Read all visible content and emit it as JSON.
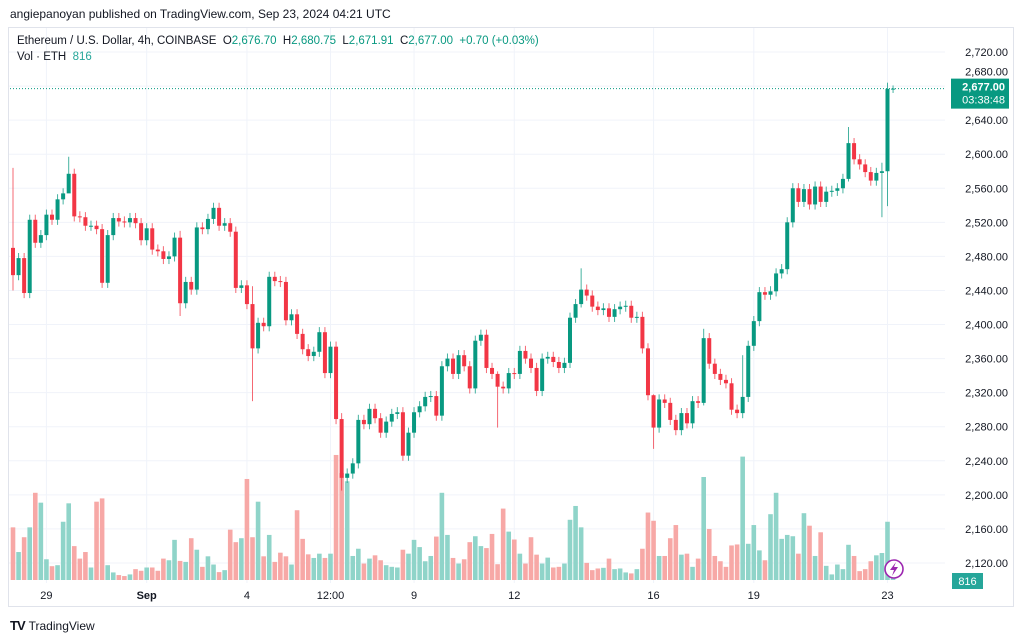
{
  "header": {
    "published": "angiepanoyan published on TradingView.com, Sep 23, 2024 04:21 UTC"
  },
  "legend": {
    "symbol": "Ethereum / U.S. Dollar, 4h, COINBASE",
    "o_label": "O",
    "o": "2,676.70",
    "h_label": "H",
    "h": "2,680.75",
    "l_label": "L",
    "l": "2,671.91",
    "c_label": "C",
    "c": "2,677.00",
    "change": "+0.70 (+0.03%)",
    "vol_label": "Vol · ETH",
    "vol": "816"
  },
  "price_label": {
    "price": "2,677.00",
    "countdown": "03:38:48"
  },
  "volume_label": "816",
  "footer": {
    "logo": "TV",
    "brand": "TradingView"
  },
  "colors": {
    "up": "#089981",
    "down": "#F23645",
    "vol_up": "#8fd4c9",
    "vol_down": "#f7a8a6",
    "accent": "#9c27b0"
  },
  "chart_data": {
    "type": "candlestick",
    "title": "Ethereum / U.S. Dollar, 4h, COINBASE",
    "ylim": [
      2090,
      2735
    ],
    "yticks": [
      2120,
      2160,
      2200,
      2240,
      2280,
      2320,
      2360,
      2400,
      2440,
      2480,
      2520,
      2560,
      2600,
      2640,
      2680,
      2720
    ],
    "ytick_labels": [
      "2,120.00",
      "2,160.00",
      "2,200.00",
      "2,240.00",
      "2,280.00",
      "2,320.00",
      "2,360.00",
      "2,400.00",
      "2,440.00",
      "2,480.00",
      "2,520.00",
      "2,560.00",
      "2,600.00",
      "2,640.00",
      "2,680.00",
      "2,720.00"
    ],
    "xticks": [
      {
        "label": "29",
        "index": 6,
        "bold": false
      },
      {
        "label": "Sep",
        "index": 24,
        "bold": true
      },
      {
        "label": "4",
        "index": 42,
        "bold": false
      },
      {
        "label": "12:00",
        "index": 57,
        "bold": false
      },
      {
        "label": "9",
        "index": 72,
        "bold": false
      },
      {
        "label": "12",
        "index": 90,
        "bold": false
      },
      {
        "label": "16",
        "index": 115,
        "bold": false
      },
      {
        "label": "19",
        "index": 133,
        "bold": false
      },
      {
        "label": "23",
        "index": 157,
        "bold": false
      }
    ],
    "first_open": 2490,
    "close": [
      2458,
      2478,
      2437,
      2523,
      2496,
      2505,
      2529,
      2523,
      2547,
      2554,
      2577,
      2527,
      2526,
      2516,
      2516,
      2512,
      2449,
      2505,
      2525,
      2521,
      2520,
      2525,
      2519,
      2499,
      2513,
      2488,
      2486,
      2477,
      2480,
      2502,
      2425,
      2450,
      2441,
      2514,
      2512,
      2524,
      2537,
      2516,
      2519,
      2509,
      2443,
      2446,
      2424,
      2372,
      2402,
      2398,
      2456,
      2451,
      2450,
      2405,
      2412,
      2389,
      2371,
      2363,
      2368,
      2391,
      2343,
      2374,
      2289,
      2220,
      2225,
      2237,
      2288,
      2283,
      2301,
      2290,
      2273,
      2286,
      2295,
      2297,
      2246,
      2273,
      2297,
      2304,
      2315,
      2316,
      2293,
      2351,
      2360,
      2342,
      2364,
      2351,
      2325,
      2381,
      2388,
      2349,
      2342,
      2327,
      2325,
      2343,
      2342,
      2369,
      2360,
      2349,
      2322,
      2360,
      2362,
      2356,
      2349,
      2355,
      2408,
      2424,
      2441,
      2434,
      2421,
      2417,
      2419,
      2409,
      2418,
      2421,
      2422,
      2408,
      2409,
      2372,
      2317,
      2279,
      2312,
      2308,
      2288,
      2276,
      2296,
      2284,
      2310,
      2308,
      2384,
      2354,
      2342,
      2335,
      2331,
      2300,
      2296,
      2315,
      2375,
      2404,
      2438,
      2435,
      2439,
      2460,
      2465,
      2520,
      2560,
      2544,
      2559,
      2541,
      2562,
      2544,
      2556,
      2557,
      2560,
      2571,
      2613,
      2594,
      2588,
      2579,
      2569,
      2578,
      2580,
      2676.7,
      2677
    ],
    "wick_overrides": {
      "0": [
        2584,
        2440
      ],
      "10": [
        2597,
        2560
      ],
      "30": [
        2510,
        2410
      ],
      "43": [
        2445,
        2310
      ],
      "59": [
        2296,
        2205
      ],
      "87": [
        2345,
        2279
      ],
      "102": [
        2466,
        2420
      ],
      "115": [
        2318,
        2254
      ],
      "124": [
        2395,
        2305
      ],
      "131": [
        2364,
        2290
      ],
      "150": [
        2632,
        2568
      ],
      "156": [
        2590,
        2526
      ],
      "157": [
        2684,
        2539
      ],
      "158": [
        2680.75,
        2671.91
      ]
    },
    "volume": [
      6160,
      3273,
      5005,
      6160,
      10203,
      9048,
      2426,
      1617,
      1733,
      6815,
      8971,
      3966,
      2503,
      3273,
      1463,
      9163,
      9548,
      1733,
      886,
      578,
      462,
      655,
      1271,
      1078,
      1463,
      1463,
      1078,
      2503,
      2310,
      4697,
      2233,
      2118,
      4890,
      3542,
      1540,
      2772,
      1810,
      924,
      1155,
      5891,
      4428,
      4890,
      11820,
      5005,
      9163,
      2772,
      5275,
      2118,
      3196,
      2772,
      1810,
      8162,
      4813,
      3003,
      2580,
      3080,
      2580,
      3080,
      14630,
      12513,
      11550,
      2811,
      3658,
      1925,
      2503,
      2888,
      2310,
      1733,
      1540,
      1463,
      3542,
      3080,
      4697,
      3850,
      2195,
      2811,
      5082,
      10203,
      5275,
      2580,
      1925,
      2426,
      4428,
      5121,
      3966,
      3735,
      5390,
      1848,
      8355,
      5660,
      4736,
      3080,
      1925,
      5005,
      2965,
      1925,
      2618,
      1463,
      1540,
      1925,
      7046,
      8663,
      6160,
      2002,
      1155,
      1348,
      1425,
      2503,
      1271,
      1348,
      886,
      770,
      1271,
      3658,
      7893,
      6930,
      2811,
      2811,
      4890,
      6430,
      2965,
      3080,
      1540,
      2503,
      12051,
      5968,
      2811,
      2195,
      1540,
      4043,
      4158,
      14438,
      4235,
      6430,
      3465,
      2310,
      7700,
      10203,
      4813,
      5275,
      5121,
      3080,
      7816,
      6353,
      2811,
      5583,
      1656,
      655,
      1810,
      1271,
      4120,
      2811,
      1040,
      1271,
      2195,
      2888,
      3157,
      6815,
      816
    ],
    "last_price": 2677.0
  }
}
